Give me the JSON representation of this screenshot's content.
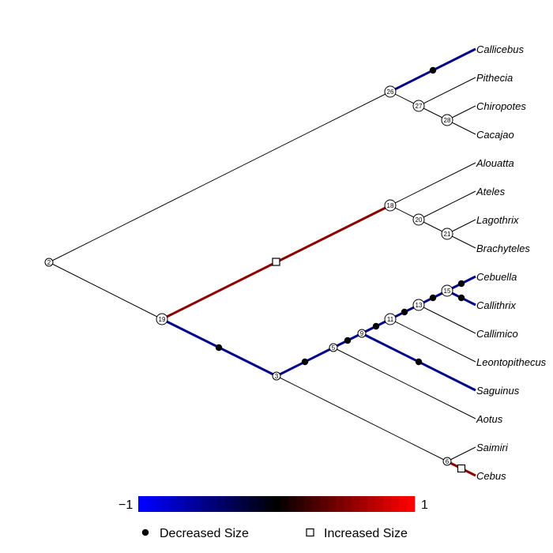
{
  "tree": {
    "colors": {
      "neutral": "#000000",
      "decreased": "#00008b",
      "increased": "#8b0000"
    },
    "tips": {
      "callicebus": "Callicebus",
      "pithecia": "Pithecia",
      "chiropotes": "Chiropotes",
      "cacajao": "Cacajao",
      "alouatta": "Alouatta",
      "ateles": "Ateles",
      "lagothrix": "Lagothrix",
      "brachyteles": "Brachyteles",
      "cebuella": "Cebuella",
      "callithrix": "Callithrix",
      "callimico": "Callimico",
      "leontopithecus": "Leontopithecus",
      "saguinus": "Saguinus",
      "aotus": "Aotus",
      "saimiri": "Saimiri",
      "cebus": "Cebus"
    },
    "nodes": {
      "n2": "2",
      "n19": "19",
      "n3": "3",
      "n5": "5",
      "n9": "9",
      "n11": "11",
      "n13": "13",
      "n15": "15",
      "n6": "6",
      "n18": "18",
      "n20": "20",
      "n21": "21",
      "n26": "26",
      "n27": "27",
      "n28": "28"
    },
    "marker_icons": {
      "decreased": "filled-circle",
      "increased": "open-square"
    }
  },
  "legend": {
    "scale_min": "−1",
    "scale_max": "1",
    "decreased_label": "Decreased Size",
    "increased_label": "Increased Size",
    "gradient_colors": [
      "#0000ff",
      "#000000",
      "#ff0000"
    ]
  }
}
